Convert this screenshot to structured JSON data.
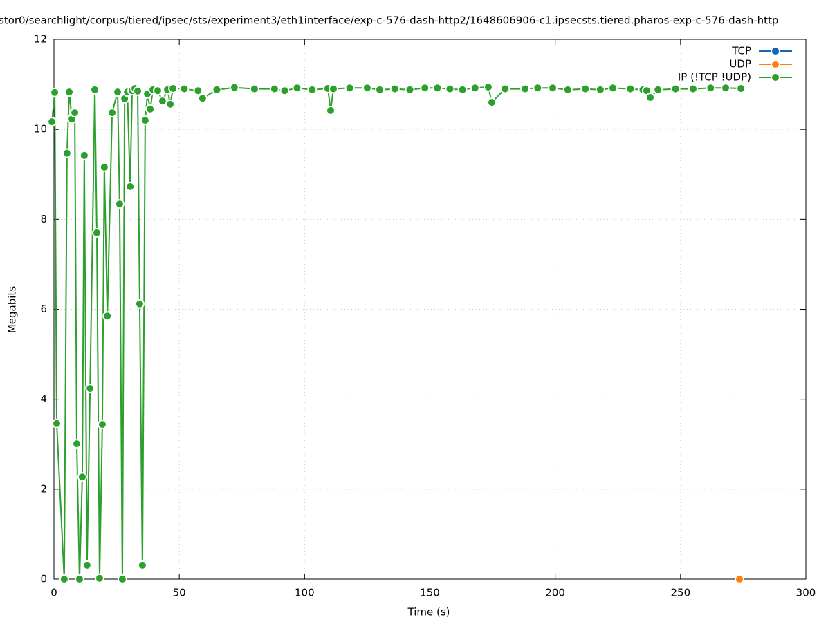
{
  "chart_data": {
    "type": "line",
    "title": "stor0/searchlight/corpus/tiered/ipsec/sts/experiment3/eth1interface/exp-c-576-dash-http2/1648606906-c1.ipsecsts.tiered.pharos-exp-c-576-dash-http",
    "xlabel": "Time (s)",
    "ylabel": "Megabits",
    "xlim": [
      0,
      300
    ],
    "ylim": [
      0,
      12
    ],
    "xticks": [
      0,
      50,
      100,
      150,
      200,
      250,
      300
    ],
    "yticks": [
      0,
      2,
      4,
      6,
      8,
      10,
      12
    ],
    "grid": true,
    "legend": "top-right",
    "series": [
      {
        "name": "TCP",
        "color": "#1565b8",
        "x": [],
        "values": []
      },
      {
        "name": "UDP",
        "color": "#ff7f0e",
        "x": [
          273.5
        ],
        "values": [
          0
        ]
      },
      {
        "name": "IP (!TCP  !UDP)",
        "color": "#2ca02c",
        "x": [
          -0.8,
          0.3,
          1.1,
          4.1,
          5.2,
          6.1,
          7.2,
          8.3,
          9.1,
          10.2,
          11.3,
          12.1,
          13.2,
          14.4,
          16.3,
          17.1,
          18.2,
          19.3,
          20.1,
          21.3,
          23.2,
          25.4,
          26.2,
          27.3,
          28.2,
          29.3,
          30.4,
          31.2,
          32.3,
          33.4,
          34.2,
          35.3,
          36.4,
          37.3,
          38.4,
          39.5,
          41.4,
          43.3,
          45.3,
          46.4,
          47.5,
          52,
          57.5,
          59.3,
          65,
          72,
          80,
          88,
          92,
          97,
          103,
          109.3,
          110.4,
          111.5,
          118,
          125,
          130,
          136,
          142,
          148,
          153,
          158,
          163,
          168,
          173.3,
          174.7,
          180,
          188,
          193,
          199,
          205,
          212,
          218,
          223,
          230,
          235,
          236.5,
          237.9,
          241,
          248,
          255,
          262,
          268,
          274.1
        ],
        "values": [
          10.17,
          10.82,
          3.46,
          0,
          9.47,
          10.83,
          10.23,
          10.37,
          3.01,
          0,
          2.27,
          9.42,
          0.31,
          4.24,
          10.88,
          7.7,
          0.02,
          3.44,
          9.16,
          5.85,
          10.37,
          10.83,
          8.34,
          0,
          10.68,
          10.83,
          8.73,
          10.86,
          10.91,
          10.85,
          6.12,
          0.31,
          10.2,
          10.79,
          10.45,
          10.88,
          10.86,
          10.63,
          10.88,
          10.56,
          10.91,
          10.9,
          10.86,
          10.69,
          10.88,
          10.93,
          10.9,
          10.9,
          10.86,
          10.92,
          10.88,
          10.91,
          10.42,
          10.9,
          10.92,
          10.92,
          10.88,
          10.9,
          10.88,
          10.92,
          10.92,
          10.9,
          10.88,
          10.92,
          10.94,
          10.6,
          10.9,
          10.9,
          10.92,
          10.92,
          10.88,
          10.9,
          10.88,
          10.92,
          10.9,
          10.88,
          10.86,
          10.71,
          10.88,
          10.9,
          10.9,
          10.92,
          10.92,
          10.91
        ]
      }
    ]
  }
}
